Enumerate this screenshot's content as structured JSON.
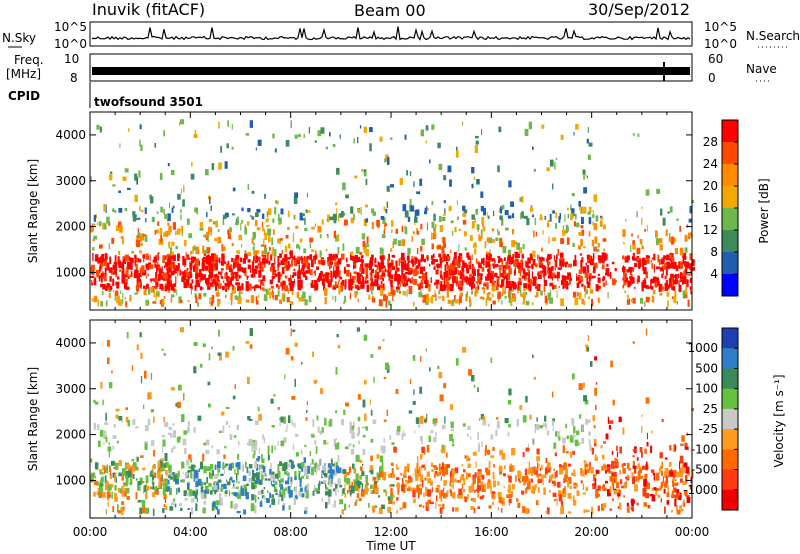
{
  "header": {
    "station": "Inuvik (fitACF)",
    "beam": "Beam 00",
    "date": "30/Sep/2012"
  },
  "strips": {
    "nsky_label": "N.Sky",
    "nsky_ticks": [
      "10^5",
      "10^0"
    ],
    "nsearch_label": "N.Search",
    "freq_label": "Freq.",
    "freq_unit": "[MHz]",
    "freq_ticks": [
      "10",
      "8"
    ],
    "nave_ticks": [
      "60",
      "0"
    ],
    "nave_label": "Nave",
    "cpid_label": "CPID",
    "cpid_value": "twofsound 3501"
  },
  "chart_data": [
    {
      "type": "heatmap",
      "name": "power",
      "ylabel": "Slant Range [km]",
      "yticks": [
        1000,
        2000,
        3000,
        4000
      ],
      "ylim": [
        180,
        4500
      ],
      "xlim_hours": [
        0,
        24
      ],
      "colorbar_label": "Power [dB]",
      "colorbar_ticks": [
        "28",
        "24",
        "20",
        "16",
        "12",
        "8",
        "4"
      ],
      "colorbar_colors": [
        "#ff0000",
        "#ff4a00",
        "#ff8a00",
        "#f2a800",
        "#6cb84c",
        "#3f8a5a",
        "#1f5fae",
        "#0000ff"
      ],
      "main_band_km": [
        600,
        1400
      ],
      "gap_hours": [
        20.6,
        21.2
      ]
    },
    {
      "type": "heatmap",
      "name": "velocity",
      "ylabel": "Slant Range [km]",
      "yticks": [
        1000,
        2000,
        3000,
        4000
      ],
      "ylim": [
        180,
        4500
      ],
      "xlim_hours": [
        0,
        24
      ],
      "colorbar_label": "Velocity [m s⁻¹]",
      "colorbar_ticks": [
        "1000",
        "500",
        "100",
        "25",
        "-25",
        "-100",
        "-500",
        "-1000"
      ],
      "colorbar_colors": [
        "#1f3fb0",
        "#2f7fc8",
        "#3a8a5a",
        "#66c040",
        "#c8c8c8",
        "#ff9a20",
        "#ff6a00",
        "#ff3a10",
        "#ee0000"
      ]
    }
  ],
  "time_axis": {
    "label": "Time UT",
    "ticks": [
      "00:00",
      "04:00",
      "08:00",
      "12:00",
      "16:00",
      "20:00",
      "00:00"
    ]
  }
}
